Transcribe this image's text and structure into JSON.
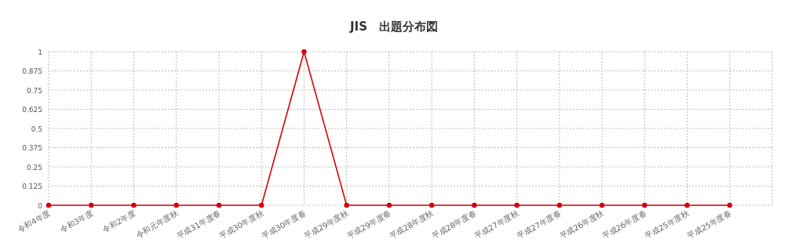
{
  "chart_data": {
    "type": "line",
    "title": "JIS　出題分布図",
    "categories": [
      "令和4年度",
      "令和3年度",
      "令和2年度",
      "令和元年度秋",
      "平成31年度春",
      "平成30年度秋",
      "平成30年度春",
      "平成29年度秋",
      "平成29年度春",
      "平成28年度秋",
      "平成28年度春",
      "平成27年度秋",
      "平成27年度春",
      "平成26年度秋",
      "平成26年度春",
      "平成25年度秋",
      "平成25年度春"
    ],
    "series": [
      {
        "color": "#d7000f",
        "values": [
          0,
          0,
          0,
          0,
          0,
          0,
          1,
          0,
          0,
          0,
          0,
          0,
          0,
          0,
          0,
          0,
          0
        ]
      }
    ],
    "ylim": [
      0,
      1
    ],
    "yticks": [
      0,
      0.125,
      0.25,
      0.375,
      0.5,
      0.625,
      0.75,
      0.875,
      1
    ],
    "grid": true,
    "marker": "circle",
    "line_style": "solid"
  }
}
